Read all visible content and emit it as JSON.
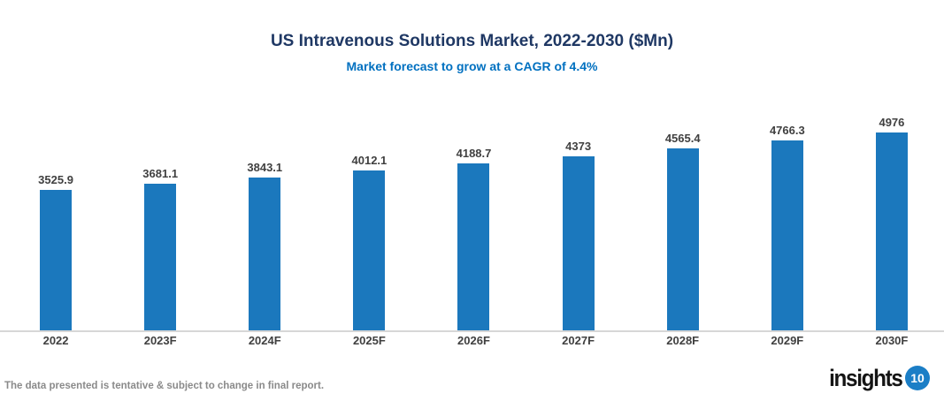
{
  "chart_data": {
    "type": "bar",
    "title": "US Intravenous Solutions Market, 2022-2030 ($Mn)",
    "subtitle": "Market forecast to grow at a CAGR of 4.4%",
    "categories": [
      "2022",
      "2023F",
      "2024F",
      "2025F",
      "2026F",
      "2027F",
      "2028F",
      "2029F",
      "2030F"
    ],
    "values": [
      3525.9,
      3681.1,
      3843.1,
      4012.1,
      4188.7,
      4373,
      4565.4,
      4766.3,
      4976
    ],
    "value_labels": [
      "3525.9",
      "3681.1",
      "3843.1",
      "4012.1",
      "4188.7",
      "4373",
      "4565.4",
      "4766.3",
      "4976"
    ],
    "xlabel": "",
    "ylabel": "",
    "ylim": [
      0,
      4976
    ],
    "grid": false,
    "legend": "none",
    "bar_color": "#1b78bd",
    "title_color": "#1f3864",
    "subtitle_color": "#0070c0",
    "label_color": "#404040",
    "axis_line_color": "#d7d7d7"
  },
  "footer": {
    "note": "The data presented is tentative & subject to change in final report."
  },
  "logo": {
    "text": "insights",
    "badge": "10",
    "badge_color": "#1b7ec6"
  }
}
